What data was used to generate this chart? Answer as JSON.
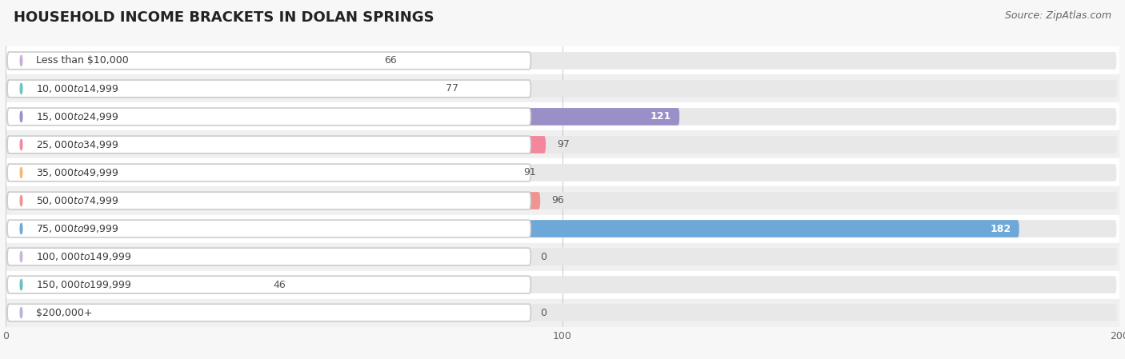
{
  "title": "HOUSEHOLD INCOME BRACKETS IN DOLAN SPRINGS",
  "source": "Source: ZipAtlas.com",
  "categories": [
    "Less than $10,000",
    "$10,000 to $14,999",
    "$15,000 to $24,999",
    "$25,000 to $34,999",
    "$35,000 to $49,999",
    "$50,000 to $74,999",
    "$75,000 to $99,999",
    "$100,000 to $149,999",
    "$150,000 to $199,999",
    "$200,000+"
  ],
  "values": [
    66,
    77,
    121,
    97,
    91,
    96,
    182,
    0,
    46,
    0
  ],
  "bar_colors": [
    "#c9afd4",
    "#6ec4be",
    "#9b8fc8",
    "#f4879c",
    "#f5b97a",
    "#f09490",
    "#6ea8d8",
    "#cbb5d8",
    "#6abfbf",
    "#b8b5db"
  ],
  "background_color": "#f7f7f7",
  "row_colors": [
    "#ffffff",
    "#f0f0f0"
  ],
  "bar_background": "#e8e8e8",
  "xlim": [
    0,
    200
  ],
  "xticks": [
    0,
    100,
    200
  ],
  "title_fontsize": 13,
  "label_fontsize": 9,
  "value_fontsize": 9
}
